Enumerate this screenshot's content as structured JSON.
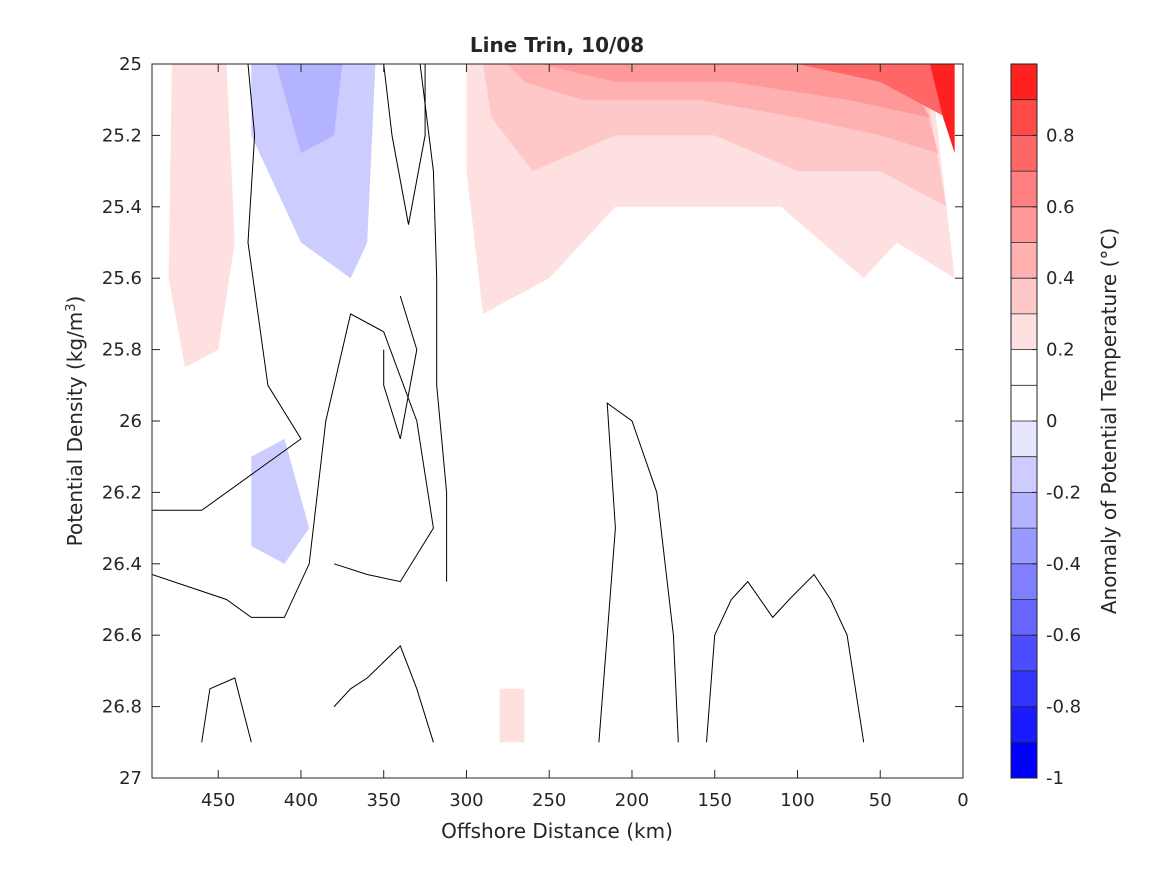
{
  "chart_data": {
    "type": "contourf",
    "title": "Line Trin, 10/08",
    "xlabel": "Offshore Distance (km)",
    "ylabel_main": "Potential Density (kg/m",
    "ylabel_sup": "3",
    "ylabel_close": ")",
    "colorbar_label": "Anomaly of Potential Temperature (°C)",
    "x_reversed": true,
    "y_reversed": true,
    "xlim": [
      490,
      0
    ],
    "ylim": [
      25,
      27
    ],
    "x_ticks": [
      {
        "value": 450,
        "label": "450"
      },
      {
        "value": 400,
        "label": "400"
      },
      {
        "value": 350,
        "label": "350"
      },
      {
        "value": 300,
        "label": "300"
      },
      {
        "value": 250,
        "label": "250"
      },
      {
        "value": 200,
        "label": "200"
      },
      {
        "value": 150,
        "label": "150"
      },
      {
        "value": 100,
        "label": "100"
      },
      {
        "value": 50,
        "label": "50"
      },
      {
        "value": 0,
        "label": "0"
      }
    ],
    "y_ticks": [
      {
        "value": 25,
        "label": "25"
      },
      {
        "value": 25.2,
        "label": "25.2"
      },
      {
        "value": 25.4,
        "label": "25.4"
      },
      {
        "value": 25.6,
        "label": "25.6"
      },
      {
        "value": 25.8,
        "label": "25.8"
      },
      {
        "value": 26,
        "label": "26"
      },
      {
        "value": 26.2,
        "label": "26.2"
      },
      {
        "value": 26.4,
        "label": "26.4"
      },
      {
        "value": 26.6,
        "label": "26.6"
      },
      {
        "value": 26.8,
        "label": "26.8"
      },
      {
        "value": 27,
        "label": "27"
      }
    ],
    "colorbar": {
      "range": [
        -1,
        1
      ],
      "levels": [
        -1,
        -0.9,
        -0.8,
        -0.7,
        -0.6,
        -0.5,
        -0.4,
        -0.3,
        -0.2,
        -0.1,
        0,
        0.1,
        0.2,
        0.3,
        0.4,
        0.5,
        0.6,
        0.7,
        0.8,
        0.9,
        1
      ],
      "colors": [
        "#0000ff",
        "#1a1aff",
        "#3333ff",
        "#4d4dff",
        "#6666ff",
        "#8080ff",
        "#9999ff",
        "#b3b3ff",
        "#ccccff",
        "#e6e6ff",
        "#ffffff",
        "#ffffff",
        "#ffe0e0",
        "#ffc8c8",
        "#ffb0b0",
        "#ff9898",
        "#ff8080",
        "#ff6666",
        "#ff4a4a",
        "#ff2020"
      ],
      "ticks": [
        {
          "value": 0.8,
          "label": "0.8"
        },
        {
          "value": 0.6,
          "label": "0.6"
        },
        {
          "value": 0.4,
          "label": "0.4"
        },
        {
          "value": 0.2,
          "label": "0.2"
        },
        {
          "value": 0,
          "label": "0"
        },
        {
          "value": -0.2,
          "label": "-0.2"
        },
        {
          "value": -0.4,
          "label": "-0.4"
        },
        {
          "value": -0.6,
          "label": "-0.6"
        },
        {
          "value": -0.8,
          "label": "-0.8"
        },
        {
          "value": -1,
          "label": "-1"
        }
      ]
    },
    "data_extent": {
      "x": [
        490,
        5
      ],
      "y": [
        25,
        26.9
      ]
    },
    "regions": [
      {
        "level": 0.15,
        "points": [
          [
            490,
            25
          ],
          [
            433,
            25
          ],
          [
            440,
            25.6
          ],
          [
            435,
            25.9
          ],
          [
            460,
            26.0
          ],
          [
            490,
            26.05
          ]
        ]
      },
      {
        "level": 0.25,
        "points": [
          [
            478,
            25
          ],
          [
            445,
            25
          ],
          [
            440,
            25.5
          ],
          [
            450,
            25.8
          ],
          [
            470,
            25.85
          ],
          [
            480,
            25.6
          ]
        ]
      },
      {
        "level": 0.15,
        "points": [
          [
            380,
            25
          ],
          [
            355,
            25
          ],
          [
            355,
            25.1
          ],
          [
            375,
            25.2
          ]
        ]
      },
      {
        "level": 0.15,
        "points": [
          [
            310,
            25
          ],
          [
            15,
            25
          ],
          [
            5,
            25.7
          ],
          [
            30,
            25.78
          ],
          [
            50,
            26.1
          ],
          [
            80,
            26.05
          ],
          [
            110,
            25.9
          ],
          [
            150,
            25.7
          ],
          [
            200,
            25.7
          ],
          [
            230,
            26.1
          ],
          [
            260,
            26.3
          ],
          [
            300,
            26.2
          ],
          [
            310,
            25.9
          ]
        ]
      },
      {
        "level": 0.25,
        "points": [
          [
            300,
            25
          ],
          [
            20,
            25
          ],
          [
            5,
            25.6
          ],
          [
            40,
            25.5
          ],
          [
            60,
            25.6
          ],
          [
            110,
            25.4
          ],
          [
            150,
            25.4
          ],
          [
            210,
            25.4
          ],
          [
            250,
            25.6
          ],
          [
            290,
            25.7
          ],
          [
            300,
            25.3
          ]
        ]
      },
      {
        "level": 0.35,
        "points": [
          [
            290,
            25
          ],
          [
            25,
            25
          ],
          [
            10,
            25.4
          ],
          [
            50,
            25.3
          ],
          [
            100,
            25.3
          ],
          [
            150,
            25.2
          ],
          [
            210,
            25.2
          ],
          [
            260,
            25.3
          ],
          [
            285,
            25.15
          ]
        ]
      },
      {
        "level": 0.45,
        "points": [
          [
            275,
            25
          ],
          [
            30,
            25
          ],
          [
            15,
            25.25
          ],
          [
            50,
            25.2
          ],
          [
            100,
            25.15
          ],
          [
            160,
            25.1
          ],
          [
            230,
            25.1
          ],
          [
            265,
            25.05
          ]
        ]
      },
      {
        "level": 0.55,
        "points": [
          [
            255,
            25
          ],
          [
            40,
            25
          ],
          [
            20,
            25.15
          ],
          [
            70,
            25.1
          ],
          [
            140,
            25.05
          ],
          [
            210,
            25.05
          ]
        ]
      },
      {
        "level": 0.75,
        "points": [
          [
            100,
            25
          ],
          [
            20,
            25
          ],
          [
            10,
            25.15
          ],
          [
            50,
            25.05
          ]
        ]
      },
      {
        "level": 0.95,
        "points": [
          [
            20,
            25
          ],
          [
            5,
            25
          ],
          [
            5,
            25.25
          ],
          [
            12,
            25.15
          ]
        ]
      },
      {
        "level": -0.15,
        "points": [
          [
            430,
            25
          ],
          [
            355,
            25
          ],
          [
            360,
            25.5
          ],
          [
            370,
            25.6
          ],
          [
            400,
            25.5
          ],
          [
            430,
            25.2
          ]
        ]
      },
      {
        "level": -0.25,
        "points": [
          [
            415,
            25
          ],
          [
            375,
            25
          ],
          [
            380,
            25.2
          ],
          [
            400,
            25.25
          ]
        ]
      },
      {
        "level": -0.15,
        "points": [
          [
            430,
            26.1
          ],
          [
            410,
            26.05
          ],
          [
            395,
            26.3
          ],
          [
            410,
            26.4
          ],
          [
            430,
            26.35
          ]
        ]
      },
      {
        "level": 0.15,
        "points": [
          [
            120,
            26.05
          ],
          [
            45,
            26.05
          ],
          [
            40,
            26.3
          ],
          [
            40,
            26.65
          ],
          [
            60,
            26.6
          ],
          [
            75,
            26.3
          ],
          [
            90,
            26.1
          ]
        ]
      },
      {
        "level": 0.15,
        "points": [
          [
            490,
            26.6
          ],
          [
            455,
            26.6
          ],
          [
            455,
            26.9
          ],
          [
            490,
            26.9
          ]
        ]
      },
      {
        "level": 0.15,
        "points": [
          [
            300,
            26.7
          ],
          [
            240,
            26.6
          ],
          [
            240,
            26.9
          ],
          [
            300,
            26.9
          ]
        ]
      },
      {
        "level": 0.25,
        "points": [
          [
            280,
            26.75
          ],
          [
            265,
            26.75
          ],
          [
            265,
            26.9
          ],
          [
            280,
            26.9
          ]
        ]
      }
    ],
    "contour_lines": [
      [
        [
          432,
          25.0
        ],
        [
          428,
          25.2
        ],
        [
          432,
          25.5
        ],
        [
          420,
          25.9
        ],
        [
          400,
          26.05
        ],
        [
          460,
          26.25
        ],
        [
          490,
          26.25
        ]
      ],
      [
        [
          490,
          26.43
        ],
        [
          445,
          26.5
        ],
        [
          430,
          26.55
        ],
        [
          410,
          26.55
        ],
        [
          395,
          26.4
        ],
        [
          385,
          26.0
        ],
        [
          370,
          25.7
        ],
        [
          350,
          25.75
        ],
        [
          330,
          26.0
        ],
        [
          320,
          26.3
        ],
        [
          340,
          26.45
        ],
        [
          360,
          26.43
        ],
        [
          380,
          26.4
        ]
      ],
      [
        [
          350,
          25.0
        ],
        [
          345,
          25.2
        ],
        [
          335,
          25.45
        ],
        [
          325,
          25.2
        ],
        [
          325,
          25.0
        ]
      ],
      [
        [
          328,
          25.0
        ],
        [
          320,
          25.3
        ],
        [
          318,
          25.6
        ],
        [
          318,
          25.9
        ],
        [
          312,
          26.2
        ],
        [
          312,
          26.45
        ]
      ],
      [
        [
          340,
          25.65
        ],
        [
          330,
          25.8
        ],
        [
          340,
          26.05
        ],
        [
          350,
          25.9
        ],
        [
          350,
          25.8
        ]
      ],
      [
        [
          220,
          26.9
        ],
        [
          215,
          26.6
        ],
        [
          210,
          26.3
        ],
        [
          215,
          25.95
        ],
        [
          200,
          26.0
        ],
        [
          185,
          26.2
        ],
        [
          175,
          26.6
        ],
        [
          172,
          26.9
        ]
      ],
      [
        [
          155,
          26.9
        ],
        [
          150,
          26.6
        ],
        [
          140,
          26.5
        ],
        [
          130,
          26.45
        ],
        [
          115,
          26.55
        ],
        [
          105,
          26.5
        ],
        [
          90,
          26.43
        ],
        [
          80,
          26.5
        ],
        [
          70,
          26.6
        ],
        [
          60,
          26.9
        ]
      ],
      [
        [
          460,
          26.9
        ],
        [
          455,
          26.75
        ],
        [
          440,
          26.72
        ],
        [
          430,
          26.9
        ]
      ],
      [
        [
          380,
          26.8
        ],
        [
          370,
          26.75
        ],
        [
          360,
          26.72
        ],
        [
          340,
          26.63
        ],
        [
          330,
          26.75
        ],
        [
          320,
          26.9
        ]
      ]
    ]
  }
}
